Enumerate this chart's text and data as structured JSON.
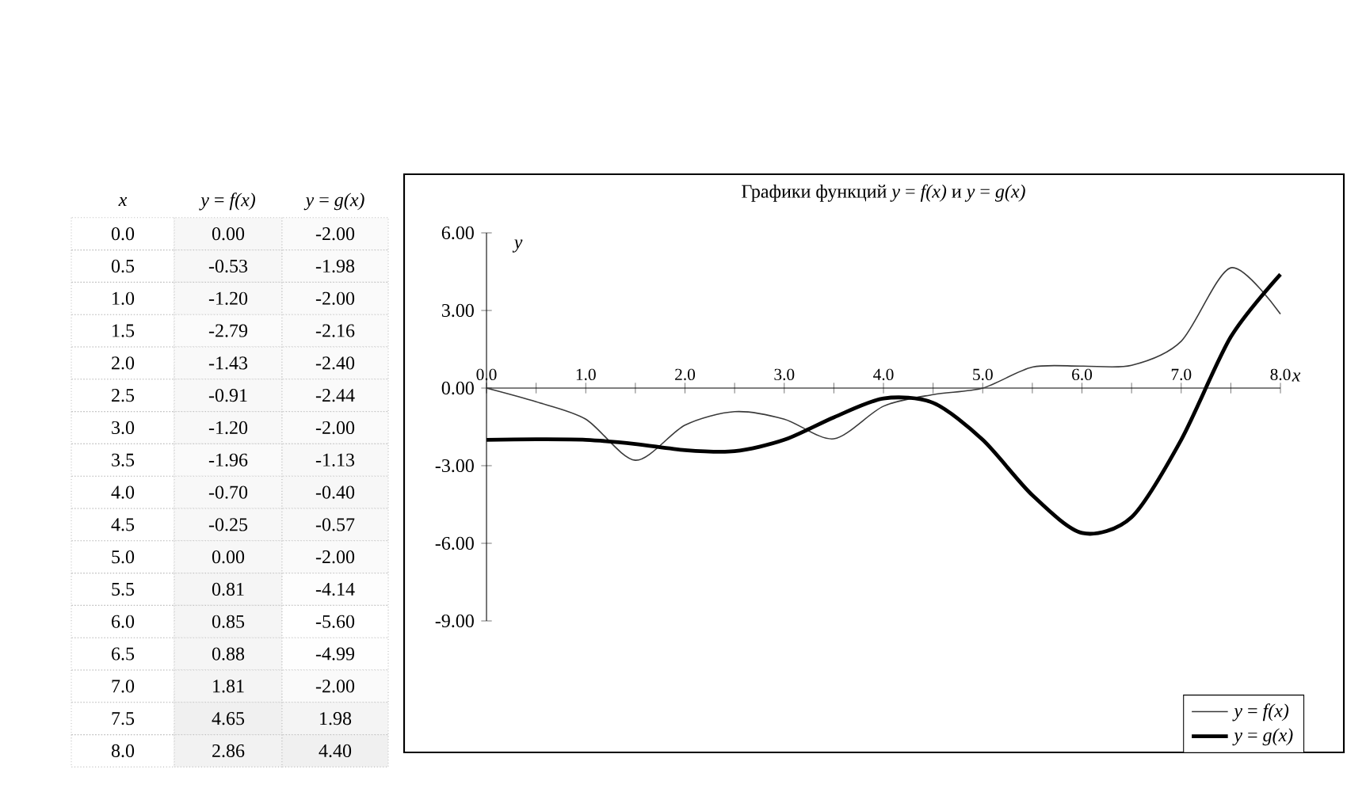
{
  "chart_data": [
    {
      "type": "heatmap",
      "ylabel": "x",
      "categories": [
        "*y* = *f(x)*",
        "*y* = *g(x)*"
      ],
      "y_categories": [
        "0.0",
        "0.5",
        "1.0",
        "1.5",
        "2.0",
        "2.5",
        "3.0",
        "3.5",
        "4.0",
        "4.5",
        "5.0",
        "5.5",
        "6.0",
        "6.5",
        "7.0",
        "7.5",
        "8.0"
      ],
      "cells": [
        [
          0.0,
          -2.0
        ],
        [
          -0.53,
          -1.98
        ],
        [
          -1.2,
          -2.0
        ],
        [
          -2.79,
          -2.16
        ],
        [
          -1.43,
          -2.4
        ],
        [
          -0.91,
          -2.44
        ],
        [
          -1.2,
          -2.0
        ],
        [
          -1.96,
          -1.13
        ],
        [
          -0.7,
          -0.4
        ],
        [
          -0.25,
          -0.57
        ],
        [
          0.0,
          -2.0
        ],
        [
          0.81,
          -4.14
        ],
        [
          0.85,
          -5.6
        ],
        [
          0.88,
          -4.99
        ],
        [
          1.81,
          -2.0
        ],
        [
          4.65,
          1.98
        ],
        [
          2.86,
          4.4
        ]
      ],
      "cell_labels": [
        [
          "0.00",
          "-2.00"
        ],
        [
          "-0.53",
          "-1.98"
        ],
        [
          "-1.20",
          "-2.00"
        ],
        [
          "-2.79",
          "-2.16"
        ],
        [
          "-1.43",
          "-2.40"
        ],
        [
          "-0.91",
          "-2.44"
        ],
        [
          "-1.20",
          "-2.00"
        ],
        [
          "-1.96",
          "-1.13"
        ],
        [
          "-0.70",
          "-0.40"
        ],
        [
          "-0.25",
          "-0.57"
        ],
        [
          "0.00",
          "-2.00"
        ],
        [
          "0.81",
          "-4.14"
        ],
        [
          "0.85",
          "-5.60"
        ],
        [
          "0.88",
          "-4.99"
        ],
        [
          "1.81",
          "-2.00"
        ],
        [
          "4.65",
          "1.98"
        ],
        [
          "2.86",
          "4.40"
        ]
      ]
    },
    {
      "type": "line",
      "title": "Графики функций *y* = *f(x)* и *y* = *g(x)*",
      "xlabel": "x",
      "ylabel": "y",
      "categories": [
        "0.0",
        null,
        "1.0",
        null,
        "2.0",
        null,
        "3.0",
        null,
        "4.0",
        null,
        "5.0",
        null,
        "6.0",
        null,
        "7.0",
        null,
        "8.0"
      ],
      "ylim": [
        -9,
        6
      ],
      "yticks": [
        {
          "value": -9,
          "label": "-9.00"
        },
        {
          "value": -6,
          "label": "-6.00"
        },
        {
          "value": -3,
          "label": "-3.00"
        },
        {
          "value": 0,
          "label": "0.00"
        },
        {
          "value": 3,
          "label": "3.00"
        },
        {
          "value": 6,
          "label": "6.00"
        }
      ],
      "legend": "bottom right",
      "series": [
        {
          "name": "*y* = *f(x)*",
          "color": "#3a3a3a",
          "values": [
            0.0,
            -0.53,
            -1.2,
            -2.79,
            -1.43,
            -0.91,
            -1.2,
            -1.96,
            -0.7,
            -0.25,
            0.0,
            0.81,
            0.85,
            0.88,
            1.81,
            4.65,
            2.86
          ]
        },
        {
          "name": "*y* = *g(x)*",
          "color": "#000000",
          "values": [
            -2.0,
            -1.98,
            -2.0,
            -2.16,
            -2.4,
            -2.44,
            -2.0,
            -1.13,
            -0.4,
            -0.57,
            -2.0,
            -4.14,
            -5.6,
            -4.99,
            -2.0,
            1.98,
            4.4
          ]
        }
      ]
    }
  ]
}
